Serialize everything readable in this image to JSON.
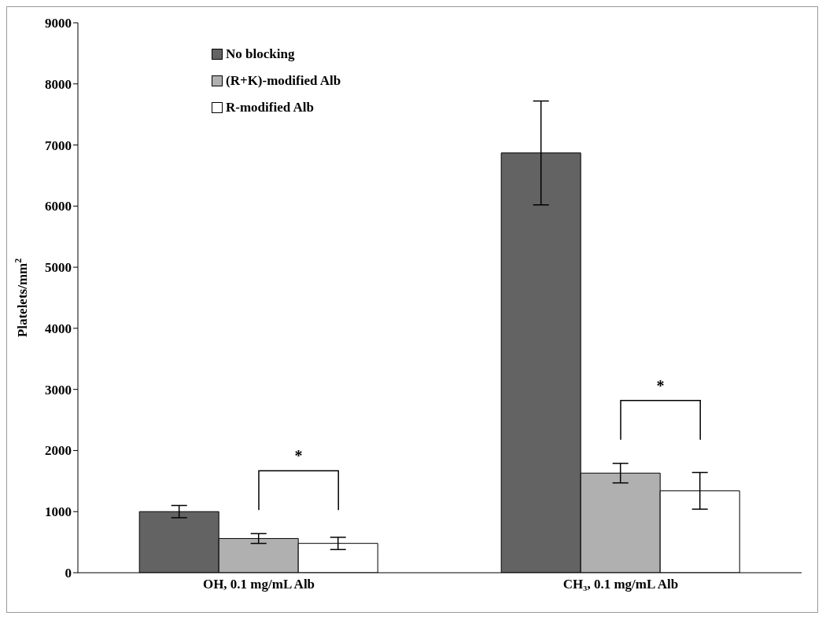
{
  "chart_data": {
    "type": "bar",
    "ylabel": "Platelets/mm$^{2}$",
    "categories": [
      "OH, 0.1 mg/mL  Alb",
      "CH₃, 0.1 mg/mL  Alb"
    ],
    "series": [
      {
        "name": "No blocking",
        "color": "#636363",
        "values": [
          1000,
          6870
        ],
        "errors": [
          100,
          850
        ]
      },
      {
        "name": "(R+K)-modified Alb",
        "color": "#b0b0b0",
        "values": [
          560,
          1630
        ],
        "errors": [
          80,
          160
        ]
      },
      {
        "name": "R-modified Alb",
        "color": "#ffffff",
        "values": [
          480,
          1340
        ],
        "errors": [
          100,
          300
        ]
      }
    ],
    "ylim": [
      0,
      9000
    ],
    "yticks": [
      0,
      1000,
      2000,
      3000,
      4000,
      5000,
      6000,
      7000,
      8000,
      9000
    ],
    "grid": false,
    "legend": "top left",
    "annotations": [
      "*",
      "*"
    ]
  }
}
